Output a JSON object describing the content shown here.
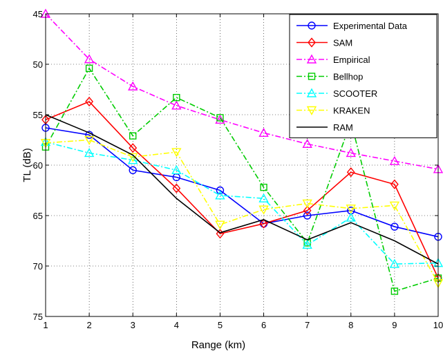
{
  "chart_data": {
    "type": "line",
    "xlabel": "Range (km)",
    "ylabel": "TL (dB)",
    "xlim": [
      1,
      10
    ],
    "ylim": [
      45,
      75
    ],
    "y_reversed": true,
    "xticks": [
      1,
      2,
      3,
      4,
      5,
      6,
      7,
      8,
      9,
      10
    ],
    "yticks": [
      45,
      50,
      55,
      60,
      65,
      70,
      75
    ],
    "grid": true,
    "legend_position": "top-right",
    "x": [
      1,
      2,
      3,
      4,
      5,
      6,
      7,
      8,
      9,
      10
    ],
    "series": [
      {
        "name": "Experimental Data",
        "color": "#0000ff",
        "dash": "solid",
        "marker": "circle",
        "values": [
          56.3,
          57.0,
          60.5,
          61.2,
          62.5,
          65.8,
          65.0,
          64.5,
          66.1,
          67.1
        ]
      },
      {
        "name": "SAM",
        "color": "#ff0000",
        "dash": "solid",
        "marker": "diamond",
        "values": [
          55.5,
          53.7,
          58.3,
          62.3,
          66.8,
          65.8,
          64.5,
          60.7,
          61.9,
          71.2
        ]
      },
      {
        "name": "Empirical",
        "color": "#ff00ff",
        "dash": "dashdot",
        "marker": "triangle-up",
        "values": [
          45.0,
          49.5,
          52.2,
          54.1,
          55.5,
          56.8,
          57.9,
          58.8,
          59.6,
          60.4
        ]
      },
      {
        "name": "Bellhop",
        "color": "#00cc00",
        "dash": "dashdot",
        "marker": "square",
        "values": [
          58.2,
          50.4,
          57.1,
          53.3,
          55.3,
          62.2,
          67.7,
          55.7,
          72.5,
          71.2
        ]
      },
      {
        "name": "SCOOTER",
        "color": "#00ffff",
        "dash": "dashdot",
        "marker": "triangle-up",
        "values": [
          57.7,
          58.8,
          59.5,
          60.5,
          63.0,
          63.3,
          67.9,
          65.2,
          69.8,
          69.7
        ]
      },
      {
        "name": "KRAKEN",
        "color": "#ffff00",
        "dash": "dashdot",
        "marker": "triangle-down",
        "values": [
          57.8,
          57.5,
          59.2,
          58.7,
          65.9,
          64.4,
          63.8,
          64.3,
          64.0,
          71.7
        ]
      },
      {
        "name": "RAM",
        "color": "#000000",
        "dash": "solid",
        "marker": "none",
        "values": [
          55.0,
          56.8,
          59.0,
          63.3,
          66.7,
          65.4,
          67.4,
          65.7,
          67.5,
          69.8
        ]
      }
    ]
  }
}
